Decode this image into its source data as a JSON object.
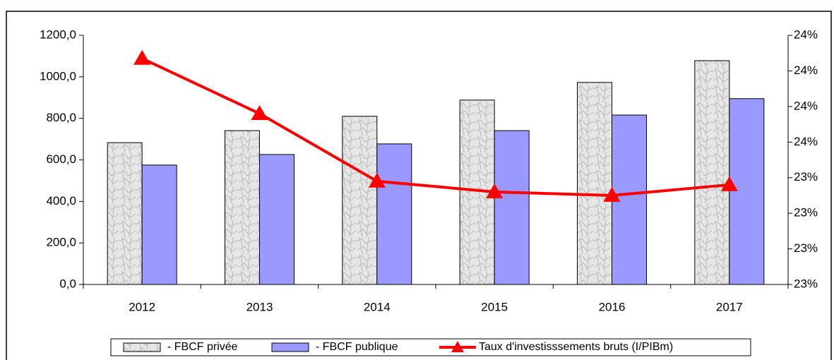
{
  "chart_data": {
    "type": "bar_line",
    "categories": [
      "2012",
      "2013",
      "2014",
      "2015",
      "2016",
      "2017"
    ],
    "series": [
      {
        "name": "- FBCF privée",
        "type": "bar",
        "color": "#d4d4d4",
        "values": [
          683,
          741,
          810,
          888,
          973,
          1078
        ]
      },
      {
        "name": "- FBCF publique",
        "type": "bar",
        "color": "#9999ff",
        "values": [
          575,
          626,
          677,
          741,
          816,
          895
        ]
      },
      {
        "name": "Taux d'investisssements bruts (I/PIBm)",
        "type": "line",
        "axis": "y2",
        "color": "#ff0000",
        "values": [
          24.07,
          23.76,
          23.38,
          23.32,
          23.3,
          23.36
        ]
      }
    ],
    "ylim": [
      0,
      1200
    ],
    "yticks": [
      {
        "value": 0,
        "label": "0,0"
      },
      {
        "value": 200,
        "label": "200,0"
      },
      {
        "value": 400,
        "label": "400,0"
      },
      {
        "value": 600,
        "label": "600,0"
      },
      {
        "value": 800,
        "label": "800,0"
      },
      {
        "value": 1000,
        "label": "1000,0"
      },
      {
        "value": 1200,
        "label": "1200,0"
      }
    ],
    "y2lim": [
      22.8,
      24.2
    ],
    "y2ticks": [
      {
        "value": 22.8,
        "label": "23%"
      },
      {
        "value": 23.0,
        "label": "23%"
      },
      {
        "value": 23.2,
        "label": "23%"
      },
      {
        "value": 23.4,
        "label": "23%"
      },
      {
        "value": 23.6,
        "label": "24%"
      },
      {
        "value": 23.8,
        "label": "24%"
      },
      {
        "value": 24.0,
        "label": "24%"
      },
      {
        "value": 24.2,
        "label": "24%"
      }
    ],
    "grid": false,
    "legend": "bottom"
  }
}
